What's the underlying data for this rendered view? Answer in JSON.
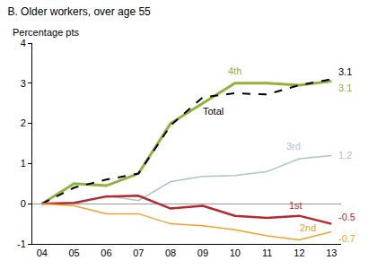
{
  "chart_data": {
    "type": "line",
    "title": "B. Older workers, over age 55",
    "y_label": "Percentage pts",
    "categories": [
      "04",
      "05",
      "06",
      "07",
      "08",
      "09",
      "10",
      "11",
      "12",
      "13"
    ],
    "series": [
      {
        "name": "4th",
        "color": "#8fb339",
        "line_style": "solid",
        "values": [
          0,
          0.5,
          0.45,
          0.75,
          2.0,
          2.5,
          3.0,
          3.0,
          2.95,
          3.05
        ]
      },
      {
        "name": "Total",
        "color": "#000000",
        "line_style": "dashed",
        "values": [
          0,
          0.4,
          0.6,
          0.75,
          1.95,
          2.65,
          2.75,
          2.72,
          2.95,
          3.1
        ]
      },
      {
        "name": "3rd",
        "color": "#a8c4d2",
        "line_style": "solid",
        "values": [
          0,
          0.0,
          0.2,
          0.08,
          0.55,
          0.68,
          0.7,
          0.8,
          1.12,
          1.2
        ]
      },
      {
        "name": "1st",
        "color": "#b5282e",
        "line_style": "solid",
        "values": [
          0,
          0.02,
          0.18,
          0.2,
          -0.12,
          -0.05,
          -0.3,
          -0.35,
          -0.3,
          -0.5
        ]
      },
      {
        "name": "2nd",
        "color": "#f2a22c",
        "line_style": "solid",
        "values": [
          0,
          -0.05,
          -0.25,
          -0.25,
          -0.5,
          -0.55,
          -0.65,
          -0.8,
          -0.9,
          -0.7
        ]
      }
    ],
    "annotations": [
      {
        "text": "3.1",
        "x": "13",
        "y": 3.1,
        "color": "#000000"
      },
      {
        "text": "3.1",
        "x": "13",
        "y": 3.05,
        "color": "#8fb339"
      },
      {
        "text": "1.2",
        "x": "13",
        "y": 1.2,
        "color": "#a8c4d2"
      },
      {
        "text": "-0.5",
        "x": "13",
        "y": -0.5,
        "color": "#b5282e"
      },
      {
        "text": "-0.7",
        "x": "13",
        "y": -0.7,
        "color": "#f2a22c"
      }
    ],
    "ylim": [
      -1,
      4
    ],
    "yticks": [
      -1,
      0,
      1,
      2,
      3,
      4
    ],
    "grid": false
  }
}
